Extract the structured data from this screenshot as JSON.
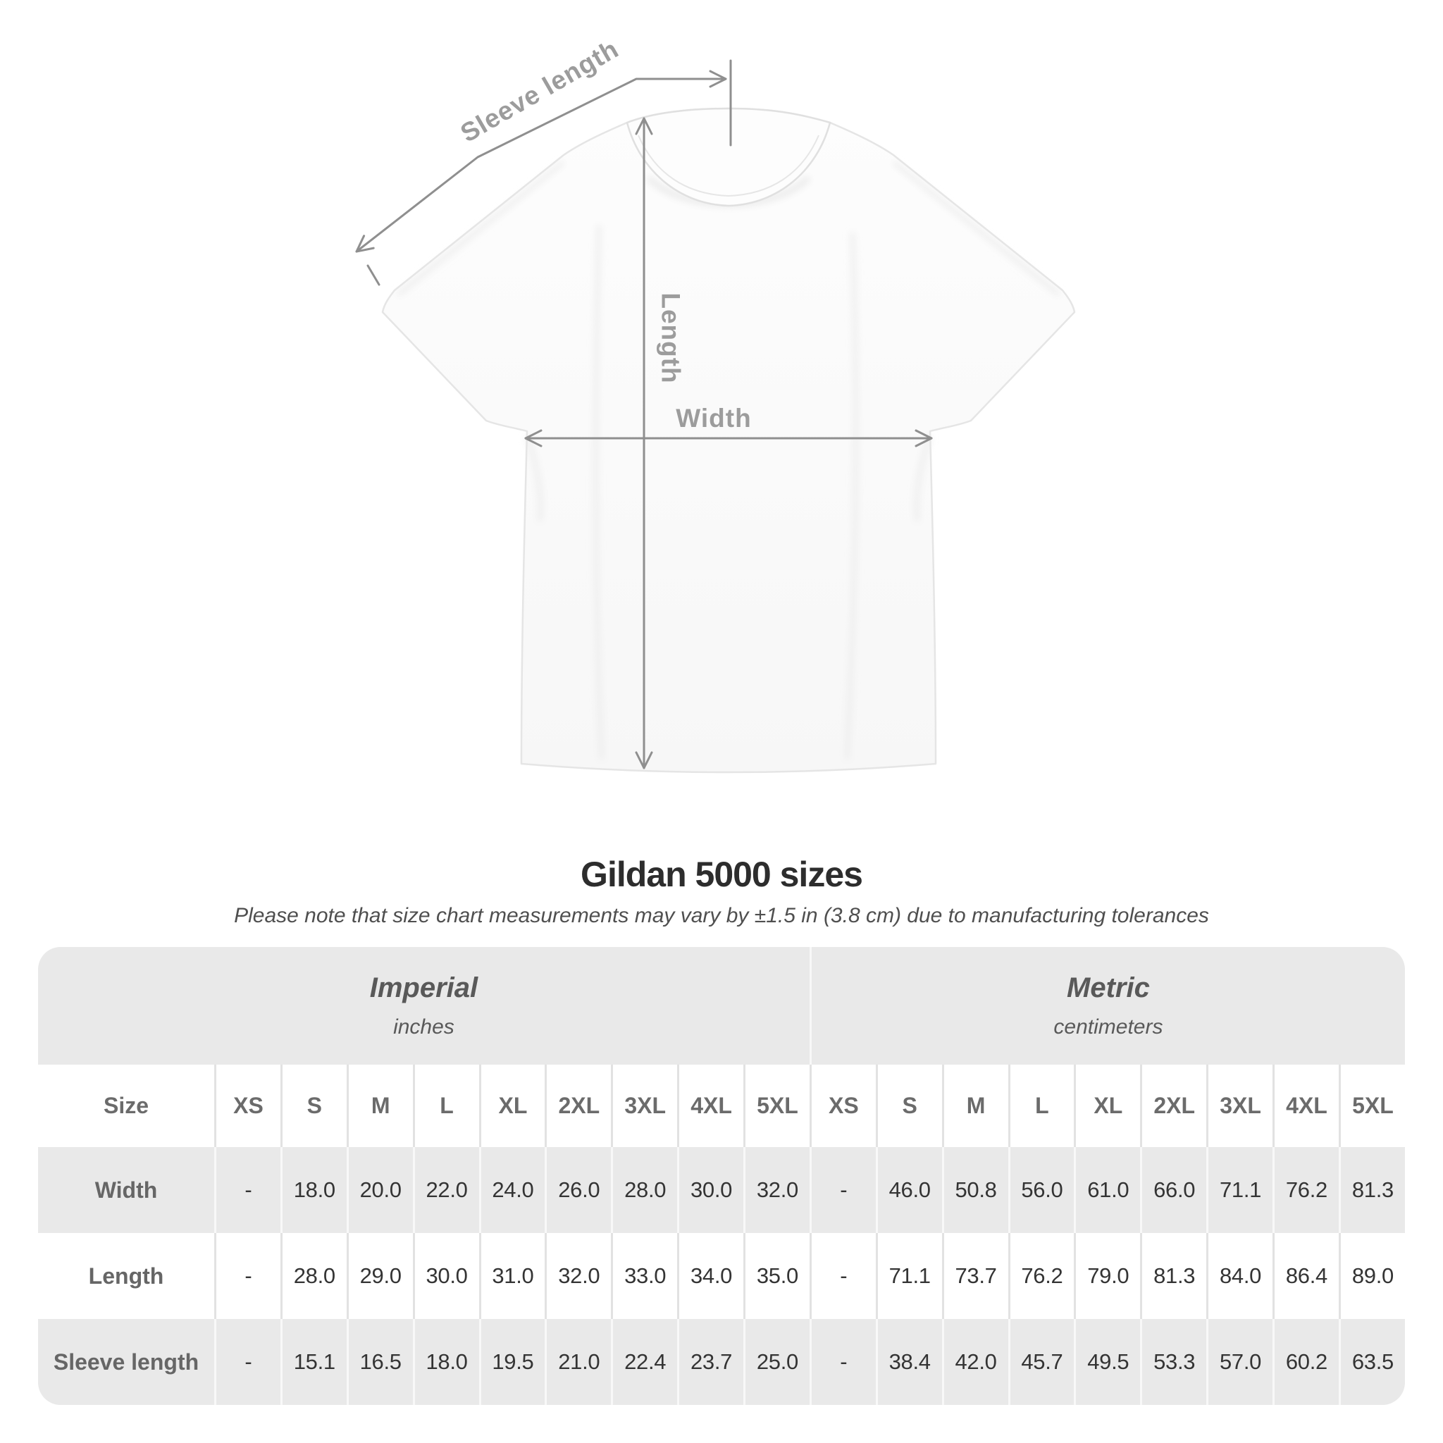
{
  "title": "Gildan 5000 sizes",
  "subtitle": "Please note that size chart measurements may vary by ±1.5 in (3.8 cm) due to manufacturing tolerances",
  "diagram": {
    "sleeve_label": "Sleeve length",
    "length_label": "Length",
    "width_label": "Width"
  },
  "colors": {
    "row_gray": "#e9e9e9",
    "dimension_line": "#8f8f8f",
    "diagram_label": "#9c9c9c",
    "title_text": "#2d2d2d"
  },
  "table": {
    "unit_groups": [
      {
        "label": "Imperial",
        "sublabel": "inches"
      },
      {
        "label": "Metric",
        "sublabel": "centimeters"
      }
    ],
    "size_header_label": "Size",
    "sizes": [
      "XS",
      "S",
      "M",
      "L",
      "XL",
      "2XL",
      "3XL",
      "4XL",
      "5XL"
    ],
    "rows": [
      {
        "label": "Width",
        "imperial": [
          "-",
          "18.0",
          "20.0",
          "22.0",
          "24.0",
          "26.0",
          "28.0",
          "30.0",
          "32.0"
        ],
        "metric": [
          "-",
          "46.0",
          "50.8",
          "56.0",
          "61.0",
          "66.0",
          "71.1",
          "76.2",
          "81.3"
        ]
      },
      {
        "label": "Length",
        "imperial": [
          "-",
          "28.0",
          "29.0",
          "30.0",
          "31.0",
          "32.0",
          "33.0",
          "34.0",
          "35.0"
        ],
        "metric": [
          "-",
          "71.1",
          "73.7",
          "76.2",
          "79.0",
          "81.3",
          "84.0",
          "86.4",
          "89.0"
        ]
      },
      {
        "label": "Sleeve length",
        "imperial": [
          "-",
          "15.1",
          "16.5",
          "18.0",
          "19.5",
          "21.0",
          "22.4",
          "23.7",
          "25.0"
        ],
        "metric": [
          "-",
          "38.4",
          "42.0",
          "45.7",
          "49.5",
          "53.3",
          "57.0",
          "60.2",
          "63.5"
        ]
      }
    ]
  },
  "chart_data": {
    "type": "table",
    "title": "Gildan 5000 sizes",
    "columns": [
      "Size",
      "XS",
      "S",
      "M",
      "L",
      "XL",
      "2XL",
      "3XL",
      "4XL",
      "5XL"
    ],
    "units": [
      "inches",
      "centimeters"
    ],
    "rows_inches": [
      [
        "Width",
        null,
        18.0,
        20.0,
        22.0,
        24.0,
        26.0,
        28.0,
        30.0,
        32.0
      ],
      [
        "Length",
        null,
        28.0,
        29.0,
        30.0,
        31.0,
        32.0,
        33.0,
        34.0,
        35.0
      ],
      [
        "Sleeve length",
        null,
        15.1,
        16.5,
        18.0,
        19.5,
        21.0,
        22.4,
        23.7,
        25.0
      ]
    ],
    "rows_centimeters": [
      [
        "Width",
        null,
        46.0,
        50.8,
        56.0,
        61.0,
        66.0,
        71.1,
        76.2,
        81.3
      ],
      [
        "Length",
        null,
        71.1,
        73.7,
        76.2,
        79.0,
        81.3,
        84.0,
        86.4,
        89.0
      ],
      [
        "Sleeve length",
        null,
        38.4,
        42.0,
        45.7,
        49.5,
        53.3,
        57.0,
        60.2,
        63.5
      ]
    ]
  }
}
